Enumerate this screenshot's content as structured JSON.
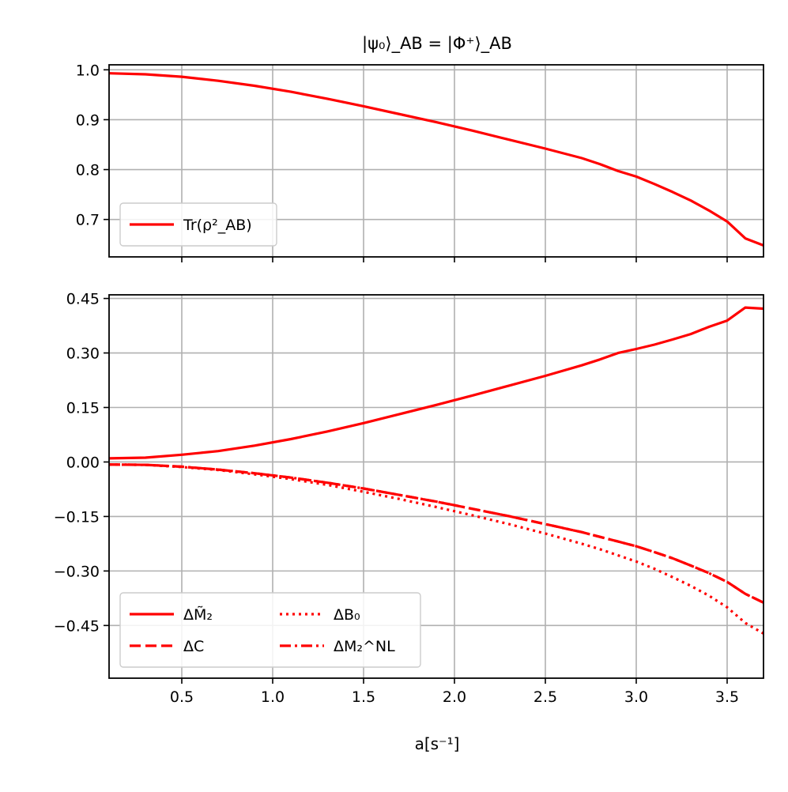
{
  "chart_data": [
    {
      "type": "line",
      "title": "|ψ₀⟩_AB = |Φ⁺⟩_AB",
      "xlabel": "",
      "ylabel": "",
      "xlim": [
        0.1,
        3.7
      ],
      "ylim": [
        0.625,
        1.01
      ],
      "xticks": [
        0.5,
        1.0,
        1.5,
        2.0,
        2.5,
        3.0,
        3.5
      ],
      "xtick_labels": [
        "",
        "",
        "",
        "",
        "",
        "",
        ""
      ],
      "yticks": [
        0.7,
        0.8,
        0.9,
        1.0
      ],
      "ytick_labels": [
        "0.7",
        "0.8",
        "0.9",
        "1.0"
      ],
      "grid": true,
      "legend_position": "lower-left",
      "series": [
        {
          "name": "Tr(ρ²_AB)",
          "style": "solid",
          "color": "#ff0000",
          "x": [
            0.1,
            0.3,
            0.5,
            0.7,
            0.9,
            1.1,
            1.3,
            1.5,
            1.7,
            1.9,
            2.1,
            2.3,
            2.5,
            2.7,
            2.8,
            2.9,
            3.0,
            3.1,
            3.2,
            3.3,
            3.4,
            3.5,
            3.6,
            3.7
          ],
          "y": [
            0.993,
            0.991,
            0.986,
            0.978,
            0.968,
            0.956,
            0.942,
            0.927,
            0.911,
            0.895,
            0.878,
            0.86,
            0.842,
            0.823,
            0.811,
            0.797,
            0.786,
            0.771,
            0.755,
            0.738,
            0.718,
            0.696,
            0.662,
            0.648
          ]
        }
      ]
    },
    {
      "type": "line",
      "title": "",
      "xlabel": "a[s⁻¹]",
      "ylabel": "",
      "xlim": [
        0.1,
        3.7
      ],
      "ylim": [
        -0.595,
        0.46
      ],
      "xticks": [
        0.5,
        1.0,
        1.5,
        2.0,
        2.5,
        3.0,
        3.5
      ],
      "xtick_labels": [
        "0.5",
        "1.0",
        "1.5",
        "2.0",
        "2.5",
        "3.0",
        "3.5"
      ],
      "yticks": [
        0.45,
        0.3,
        0.15,
        0.0,
        -0.15,
        -0.3,
        -0.45
      ],
      "ytick_labels": [
        "0.45",
        "0.30",
        "0.15",
        "0.00",
        "−0.15",
        "−0.30",
        "−0.45"
      ],
      "grid": true,
      "legend_position": "lower-left",
      "series": [
        {
          "name": "ΔM̃₂",
          "style": "solid",
          "color": "#ff0000",
          "x": [
            0.1,
            0.3,
            0.5,
            0.7,
            0.9,
            1.1,
            1.3,
            1.5,
            1.7,
            1.9,
            2.1,
            2.3,
            2.5,
            2.7,
            2.8,
            2.9,
            3.0,
            3.1,
            3.2,
            3.3,
            3.4,
            3.5,
            3.6,
            3.7
          ],
          "y": [
            0.01,
            0.012,
            0.02,
            0.03,
            0.045,
            0.063,
            0.084,
            0.107,
            0.132,
            0.157,
            0.183,
            0.21,
            0.237,
            0.266,
            0.282,
            0.3,
            0.311,
            0.323,
            0.337,
            0.352,
            0.372,
            0.389,
            0.425,
            0.422
          ]
        },
        {
          "name": "ΔC",
          "style": "dashed",
          "color": "#ff0000",
          "x": [
            0.1,
            0.3,
            0.5,
            0.7,
            0.9,
            1.1,
            1.3,
            1.5,
            1.7,
            1.9,
            2.1,
            2.3,
            2.5,
            2.7,
            2.8,
            2.9,
            3.0,
            3.1,
            3.2,
            3.3,
            3.4,
            3.5,
            3.6,
            3.7
          ],
          "y": [
            -0.007,
            -0.008,
            -0.013,
            -0.021,
            -0.031,
            -0.043,
            -0.057,
            -0.073,
            -0.091,
            -0.109,
            -0.129,
            -0.149,
            -0.171,
            -0.193,
            -0.206,
            -0.219,
            -0.232,
            -0.248,
            -0.265,
            -0.285,
            -0.306,
            -0.33,
            -0.363,
            -0.387
          ]
        },
        {
          "name": "ΔB₀",
          "style": "dotted",
          "color": "#ff0000",
          "x": [
            0.1,
            0.3,
            0.5,
            0.7,
            0.9,
            1.1,
            1.3,
            1.5,
            1.7,
            1.9,
            2.1,
            2.3,
            2.5,
            2.7,
            2.8,
            2.9,
            3.0,
            3.1,
            3.2,
            3.3,
            3.4,
            3.5,
            3.6,
            3.7
          ],
          "y": [
            -0.007,
            -0.008,
            -0.014,
            -0.022,
            -0.034,
            -0.047,
            -0.063,
            -0.082,
            -0.102,
            -0.124,
            -0.147,
            -0.171,
            -0.197,
            -0.225,
            -0.24,
            -0.257,
            -0.274,
            -0.294,
            -0.317,
            -0.341,
            -0.368,
            -0.4,
            -0.443,
            -0.472
          ]
        },
        {
          "name": "ΔM₂^NL",
          "style": "dashdot",
          "color": "#ff0000",
          "x": [
            0.1,
            0.3,
            0.5,
            0.7,
            0.9,
            1.1,
            1.3,
            1.5,
            1.7,
            1.9,
            2.1,
            2.3,
            2.5,
            2.7,
            2.8,
            2.9,
            3.0,
            3.1,
            3.2,
            3.3,
            3.4,
            3.5,
            3.6,
            3.7
          ],
          "y": [
            -0.007,
            -0.008,
            -0.013,
            -0.021,
            -0.031,
            -0.043,
            -0.057,
            -0.073,
            -0.091,
            -0.109,
            -0.129,
            -0.149,
            -0.171,
            -0.193,
            -0.206,
            -0.219,
            -0.232,
            -0.248,
            -0.265,
            -0.285,
            -0.306,
            -0.33,
            -0.363,
            -0.387
          ]
        }
      ]
    }
  ]
}
